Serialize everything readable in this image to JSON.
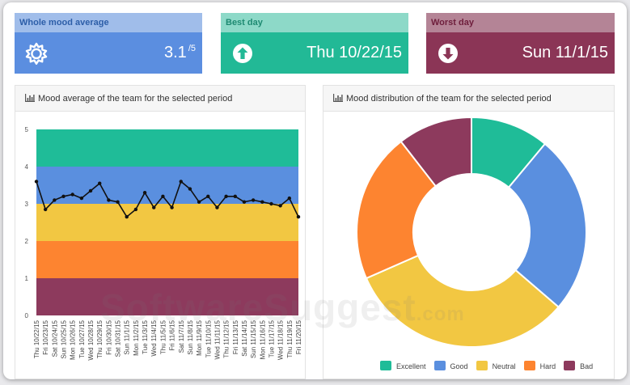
{
  "kpis": {
    "average": {
      "title": "Whole mood average",
      "value": "3.1",
      "suffix": "/5",
      "icon": "sun-icon"
    },
    "best": {
      "title": "Best day",
      "value": "Thu 10/22/15",
      "icon": "arrow-up-circle-icon"
    },
    "worst": {
      "title": "Worst day",
      "value": "Sun 11/1/15",
      "icon": "arrow-down-circle-icon"
    }
  },
  "colors": {
    "excellent": "#1fbc98",
    "good": "#5a8fdf",
    "neutral": "#f2c742",
    "hard": "#fd8430",
    "bad": "#8d3a5d"
  },
  "panels": {
    "line_title": "Mood average of the team for the selected period",
    "donut_title": "Mood distribution of the team for the selected period"
  },
  "watermark": {
    "main": "SoftwareSuggest",
    "suffix": ".com"
  },
  "chart_data": [
    {
      "type": "line",
      "title": "Mood average of the team for the selected period",
      "ylim": [
        0,
        5
      ],
      "yticks": [
        "0",
        "1",
        "2",
        "3",
        "4",
        "5"
      ],
      "bands": [
        {
          "from": 4,
          "to": 5,
          "color": "#1fbc98"
        },
        {
          "from": 3,
          "to": 4,
          "color": "#5a8fdf"
        },
        {
          "from": 2,
          "to": 3,
          "color": "#f2c742"
        },
        {
          "from": 1,
          "to": 2,
          "color": "#fd8430"
        },
        {
          "from": 0,
          "to": 1,
          "color": "#8d3a5d"
        }
      ],
      "x": [
        "Thu 10/22/15",
        "Fri 10/23/15",
        "Sat 10/24/15",
        "Sun 10/25/15",
        "Mon 10/26/15",
        "Tue 10/27/15",
        "Wed 10/28/15",
        "Thu 10/29/15",
        "Fri 10/30/15",
        "Sat 10/31/15",
        "Sun 11/1/15",
        "Mon 11/2/15",
        "Tue 11/3/15",
        "Wed 11/4/15",
        "Thu 11/5/15",
        "Fri 11/6/15",
        "Sat 11/7/15",
        "Sun 11/8/15",
        "Mon 11/9/15",
        "Tue 11/10/15",
        "Wed 11/11/15",
        "Thu 11/12/15",
        "Fri 11/13/15",
        "Sat 11/14/15",
        "Sun 11/15/15",
        "Mon 11/16/15",
        "Tue 11/17/15",
        "Wed 11/18/15",
        "Thu 11/19/15",
        "Fri 11/20/15"
      ],
      "values": [
        3.6,
        2.85,
        3.1,
        3.2,
        3.25,
        3.15,
        3.35,
        3.55,
        3.1,
        3.05,
        2.65,
        2.85,
        3.3,
        2.9,
        3.2,
        2.9,
        3.6,
        3.4,
        3.05,
        3.2,
        2.9,
        3.2,
        3.2,
        3.05,
        3.1,
        3.05,
        3.0,
        2.95,
        3.15,
        2.65
      ],
      "grid": false
    },
    {
      "type": "pie",
      "donut": true,
      "title": "Mood distribution of the team for the selected period",
      "categories": [
        "Excellent",
        "Good",
        "Neutral",
        "Hard",
        "Bad"
      ],
      "values": [
        10.5,
        24,
        30.5,
        20,
        10
      ],
      "legend_position": "bottom"
    }
  ]
}
